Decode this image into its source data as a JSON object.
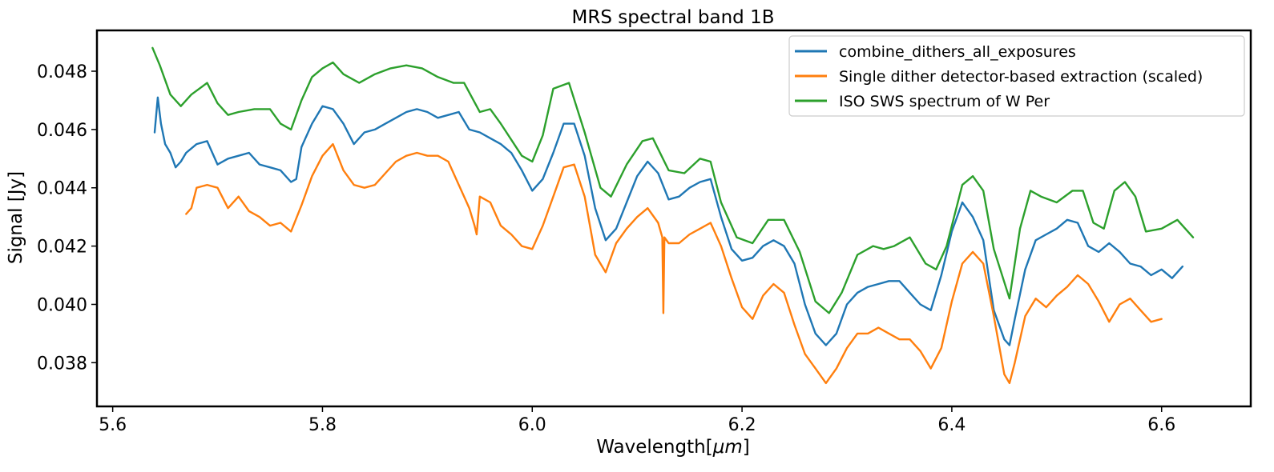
{
  "chart_data": {
    "type": "line",
    "title": "MRS spectral band 1B",
    "xlabel_text": "Wavelength",
    "xlabel_unit": "μm",
    "ylabel": "Signal [Jy]",
    "xlim": [
      5.585,
      6.685
    ],
    "ylim": [
      0.0365,
      0.0494
    ],
    "xticks": [
      5.6,
      5.8,
      6.0,
      6.2,
      6.4,
      6.6
    ],
    "xtick_labels": [
      "5.6",
      "5.8",
      "6.0",
      "6.2",
      "6.4",
      "6.6"
    ],
    "yticks": [
      0.038,
      0.04,
      0.042,
      0.044,
      0.046,
      0.048
    ],
    "ytick_labels": [
      "0.038",
      "0.040",
      "0.042",
      "0.044",
      "0.046",
      "0.048"
    ],
    "grid": false,
    "legend_position": "top-right",
    "series": [
      {
        "name": "combine_dithers_all_exposures",
        "color": "#1f77b4",
        "x": [
          5.64,
          5.643,
          5.646,
          5.65,
          5.655,
          5.66,
          5.665,
          5.67,
          5.68,
          5.69,
          5.7,
          5.71,
          5.72,
          5.73,
          5.74,
          5.75,
          5.76,
          5.77,
          5.775,
          5.78,
          5.79,
          5.8,
          5.81,
          5.82,
          5.83,
          5.84,
          5.85,
          5.86,
          5.87,
          5.88,
          5.89,
          5.9,
          5.91,
          5.92,
          5.93,
          5.94,
          5.95,
          5.96,
          5.97,
          5.98,
          5.99,
          6.0,
          6.01,
          6.02,
          6.03,
          6.04,
          6.05,
          6.06,
          6.07,
          6.08,
          6.09,
          6.1,
          6.11,
          6.12,
          6.13,
          6.14,
          6.15,
          6.16,
          6.17,
          6.18,
          6.19,
          6.2,
          6.21,
          6.22,
          6.23,
          6.24,
          6.25,
          6.26,
          6.27,
          6.28,
          6.29,
          6.3,
          6.31,
          6.32,
          6.33,
          6.34,
          6.35,
          6.36,
          6.37,
          6.38,
          6.39,
          6.4,
          6.41,
          6.42,
          6.43,
          6.44,
          6.45,
          6.455,
          6.46,
          6.47,
          6.48,
          6.49,
          6.5,
          6.51,
          6.52,
          6.53,
          6.54,
          6.55,
          6.56,
          6.57,
          6.58,
          6.59,
          6.6,
          6.61,
          6.62
        ],
        "y": [
          0.0459,
          0.0471,
          0.0462,
          0.0455,
          0.0452,
          0.0447,
          0.0449,
          0.0452,
          0.0455,
          0.0456,
          0.0448,
          0.045,
          0.0451,
          0.0452,
          0.0448,
          0.0447,
          0.0446,
          0.0442,
          0.0443,
          0.0454,
          0.0462,
          0.0468,
          0.0467,
          0.0462,
          0.0455,
          0.0459,
          0.046,
          0.0462,
          0.0464,
          0.0466,
          0.0467,
          0.0466,
          0.0464,
          0.0465,
          0.0466,
          0.046,
          0.0459,
          0.0457,
          0.0455,
          0.0452,
          0.0446,
          0.0439,
          0.0443,
          0.0452,
          0.0462,
          0.0462,
          0.0451,
          0.0433,
          0.0422,
          0.0426,
          0.0435,
          0.0444,
          0.0449,
          0.0445,
          0.0436,
          0.0437,
          0.044,
          0.0442,
          0.0443,
          0.043,
          0.0419,
          0.0415,
          0.0416,
          0.042,
          0.0422,
          0.042,
          0.0414,
          0.04,
          0.039,
          0.0386,
          0.039,
          0.04,
          0.0404,
          0.0406,
          0.0407,
          0.0408,
          0.0408,
          0.0404,
          0.04,
          0.0398,
          0.041,
          0.0425,
          0.0435,
          0.043,
          0.0422,
          0.0398,
          0.0388,
          0.0386,
          0.0395,
          0.0412,
          0.0422,
          0.0424,
          0.0426,
          0.0429,
          0.0428,
          0.042,
          0.0418,
          0.0421,
          0.0418,
          0.0414,
          0.0413,
          0.041,
          0.0412,
          0.0409,
          0.0413
        ]
      },
      {
        "name": "Single dither detector-based extraction (scaled)",
        "color": "#ff7f0e",
        "x": [
          5.67,
          5.675,
          5.68,
          5.69,
          5.7,
          5.71,
          5.72,
          5.73,
          5.74,
          5.75,
          5.76,
          5.77,
          5.78,
          5.79,
          5.8,
          5.81,
          5.82,
          5.83,
          5.84,
          5.85,
          5.86,
          5.87,
          5.88,
          5.89,
          5.9,
          5.91,
          5.92,
          5.93,
          5.94,
          5.945,
          5.947,
          5.95,
          5.96,
          5.97,
          5.98,
          5.99,
          6.0,
          6.01,
          6.02,
          6.03,
          6.04,
          6.05,
          6.06,
          6.07,
          6.08,
          6.09,
          6.1,
          6.11,
          6.12,
          6.124,
          6.125,
          6.126,
          6.13,
          6.14,
          6.15,
          6.16,
          6.17,
          6.18,
          6.19,
          6.2,
          6.21,
          6.22,
          6.23,
          6.24,
          6.25,
          6.26,
          6.27,
          6.28,
          6.29,
          6.3,
          6.31,
          6.32,
          6.33,
          6.34,
          6.35,
          6.36,
          6.37,
          6.38,
          6.39,
          6.4,
          6.41,
          6.42,
          6.43,
          6.44,
          6.45,
          6.455,
          6.46,
          6.47,
          6.48,
          6.49,
          6.5,
          6.51,
          6.52,
          6.53,
          6.54,
          6.55,
          6.56,
          6.57,
          6.58,
          6.59,
          6.6
        ],
        "y": [
          0.0431,
          0.0433,
          0.044,
          0.0441,
          0.044,
          0.0433,
          0.0437,
          0.0432,
          0.043,
          0.0427,
          0.0428,
          0.0425,
          0.0434,
          0.0444,
          0.0451,
          0.0455,
          0.0446,
          0.0441,
          0.044,
          0.0441,
          0.0445,
          0.0449,
          0.0451,
          0.0452,
          0.0451,
          0.0451,
          0.0449,
          0.0441,
          0.0433,
          0.0427,
          0.0424,
          0.0437,
          0.0435,
          0.0427,
          0.0424,
          0.042,
          0.0419,
          0.0427,
          0.0437,
          0.0447,
          0.0448,
          0.0437,
          0.0417,
          0.0411,
          0.0421,
          0.0426,
          0.043,
          0.0433,
          0.0428,
          0.0423,
          0.0397,
          0.0423,
          0.0421,
          0.0421,
          0.0424,
          0.0426,
          0.0428,
          0.042,
          0.0409,
          0.0399,
          0.0395,
          0.0403,
          0.0407,
          0.0404,
          0.0393,
          0.0383,
          0.0378,
          0.0373,
          0.0378,
          0.0385,
          0.039,
          0.039,
          0.0392,
          0.039,
          0.0388,
          0.0388,
          0.0384,
          0.0378,
          0.0385,
          0.0401,
          0.0414,
          0.0418,
          0.0414,
          0.0396,
          0.0376,
          0.0373,
          0.038,
          0.0396,
          0.0402,
          0.0399,
          0.0403,
          0.0406,
          0.041,
          0.0407,
          0.0401,
          0.0394,
          0.04,
          0.0402,
          0.0398,
          0.0394,
          0.0395
        ]
      },
      {
        "name": "ISO SWS spectrum of W Per",
        "color": "#2ca02c",
        "x": [
          5.638,
          5.645,
          5.655,
          5.665,
          5.675,
          5.69,
          5.7,
          5.71,
          5.72,
          5.735,
          5.75,
          5.76,
          5.77,
          5.78,
          5.79,
          5.8,
          5.81,
          5.82,
          5.835,
          5.85,
          5.865,
          5.88,
          5.895,
          5.91,
          5.925,
          5.935,
          5.95,
          5.96,
          5.97,
          5.99,
          6.0,
          6.01,
          6.02,
          6.035,
          6.05,
          6.065,
          6.075,
          6.09,
          6.105,
          6.115,
          6.13,
          6.145,
          6.16,
          6.17,
          6.18,
          6.195,
          6.21,
          6.225,
          6.24,
          6.255,
          6.27,
          6.283,
          6.295,
          6.31,
          6.325,
          6.335,
          6.345,
          6.36,
          6.375,
          6.385,
          6.395,
          6.41,
          6.42,
          6.43,
          6.44,
          6.455,
          6.465,
          6.475,
          6.485,
          6.5,
          6.515,
          6.525,
          6.535,
          6.545,
          6.555,
          6.565,
          6.575,
          6.585,
          6.6,
          6.615,
          6.63
        ],
        "y": [
          0.0488,
          0.0482,
          0.0472,
          0.0468,
          0.0472,
          0.0476,
          0.0469,
          0.0465,
          0.0466,
          0.0467,
          0.0467,
          0.0462,
          0.046,
          0.047,
          0.0478,
          0.0481,
          0.0483,
          0.0479,
          0.0476,
          0.0479,
          0.0481,
          0.0482,
          0.0481,
          0.0478,
          0.0476,
          0.0476,
          0.0466,
          0.0467,
          0.0462,
          0.0451,
          0.0449,
          0.0458,
          0.0474,
          0.0476,
          0.0459,
          0.044,
          0.0437,
          0.0448,
          0.0456,
          0.0457,
          0.0446,
          0.0445,
          0.045,
          0.0449,
          0.0435,
          0.0423,
          0.0421,
          0.0429,
          0.0429,
          0.0418,
          0.0401,
          0.0397,
          0.0404,
          0.0417,
          0.042,
          0.0419,
          0.042,
          0.0423,
          0.0414,
          0.0412,
          0.042,
          0.0441,
          0.0444,
          0.0439,
          0.0419,
          0.0402,
          0.0426,
          0.0439,
          0.0437,
          0.0435,
          0.0439,
          0.0439,
          0.0428,
          0.0426,
          0.0439,
          0.0442,
          0.0437,
          0.0425,
          0.0426,
          0.0429,
          0.0423
        ]
      }
    ]
  }
}
